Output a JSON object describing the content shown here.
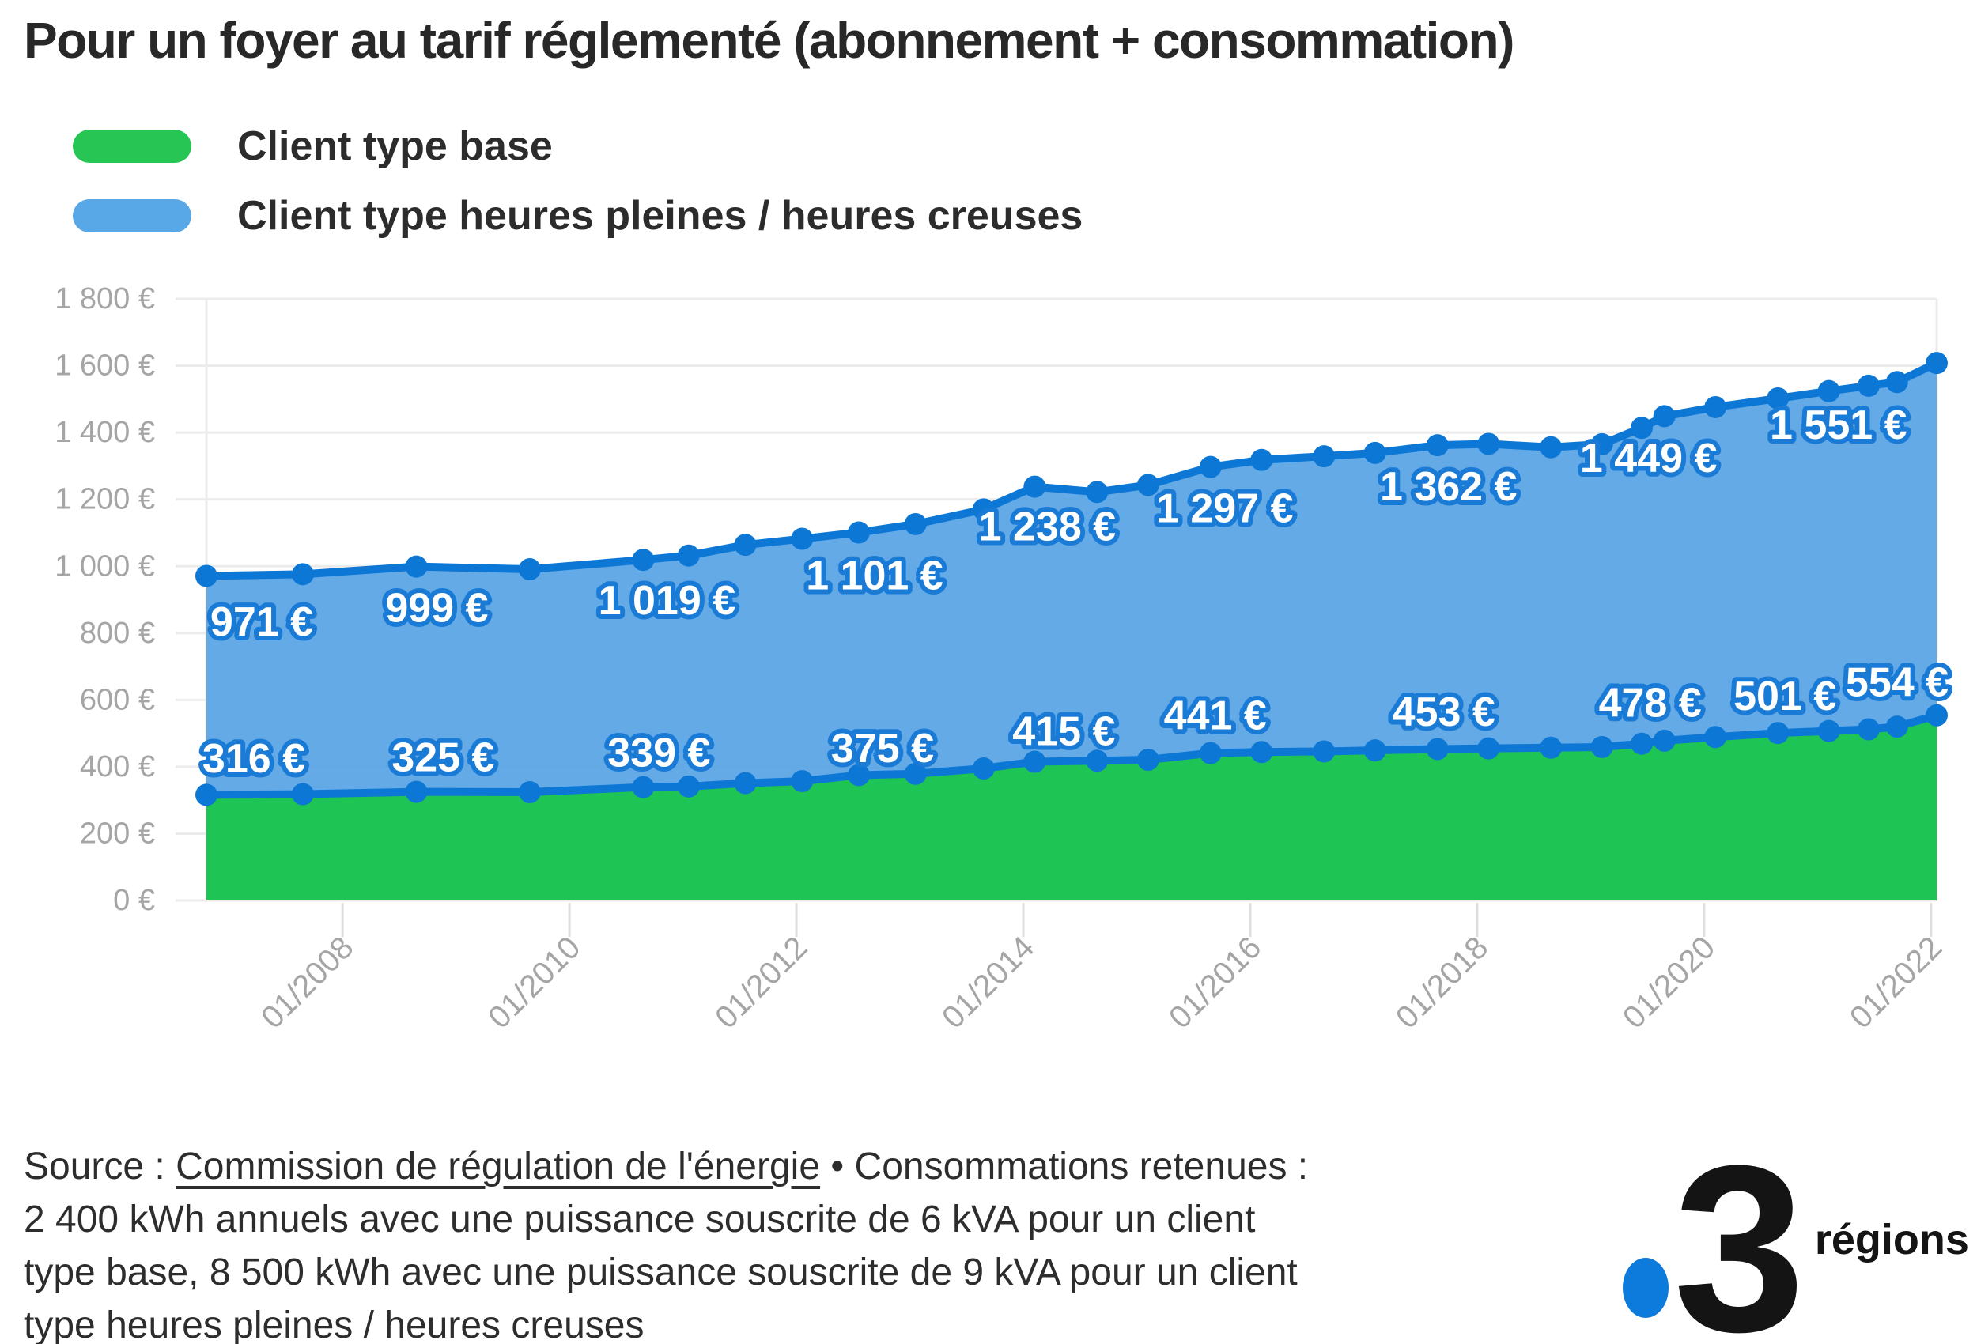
{
  "title": "Pour un foyer au tarif réglementé (abonnement + consommation)",
  "legend": {
    "items": [
      {
        "label": "Client type base",
        "color": "#27c654"
      },
      {
        "label": "Client type heures pleines / heures creuses",
        "color": "#58a8e8"
      }
    ]
  },
  "chart_data": {
    "type": "area",
    "title": "Pour un foyer au tarif réglementé (abonnement + consommation)",
    "xlabel": "",
    "ylabel": "",
    "xlim": [
      2006.8,
      2022.05
    ],
    "ylim": [
      0,
      1800
    ],
    "grid": "horizontal",
    "legend_position": "top-left",
    "x": [
      2006.8,
      2007.65,
      2008.65,
      2009.65,
      2010.65,
      2011.05,
      2011.55,
      2012.05,
      2012.55,
      2013.05,
      2013.65,
      2014.1,
      2014.65,
      2015.1,
      2015.65,
      2016.1,
      2016.65,
      2017.1,
      2017.65,
      2018.1,
      2018.65,
      2019.1,
      2019.45,
      2019.65,
      2020.1,
      2020.65,
      2021.1,
      2021.45,
      2021.7,
      2022.05
    ],
    "series": [
      {
        "name": "Client type heures pleines / heures creuses",
        "line_color": "#0d77d6",
        "fill_color": "#5ba5e5",
        "values": [
          971,
          976,
          999,
          991,
          1019,
          1032,
          1064,
          1082,
          1101,
          1126,
          1170,
          1238,
          1222,
          1243,
          1297,
          1318,
          1329,
          1339,
          1362,
          1366,
          1356,
          1365,
          1414,
          1449,
          1476,
          1502,
          1524,
          1540,
          1551,
          1608
        ],
        "labels": [
          {
            "index": 0,
            "text": "971 €",
            "dx": 70,
            "dy": 62
          },
          {
            "index": 2,
            "text": "999 €",
            "dx": 26,
            "dy": 56
          },
          {
            "index": 4,
            "text": "1 019 €",
            "dx": 30,
            "dy": 55
          },
          {
            "index": 8,
            "text": "1 101 €",
            "dx": 20,
            "dy": 58
          },
          {
            "index": 11,
            "text": "1 238 €",
            "dx": 16,
            "dy": 54
          },
          {
            "index": 14,
            "text": "1 297 €",
            "dx": 18,
            "dy": 56
          },
          {
            "index": 18,
            "text": "1 362 €",
            "dx": 14,
            "dy": 56
          },
          {
            "index": 23,
            "text": "1 449 €",
            "dx": -20,
            "dy": 57
          },
          {
            "index": 28,
            "text": "1 551 €",
            "dx": -74,
            "dy": 58
          }
        ]
      },
      {
        "name": "Client type base",
        "line_color": "#0d77d6",
        "fill_color": "#1ec454",
        "values": [
          316,
          318,
          325,
          324,
          339,
          341,
          351,
          357,
          375,
          379,
          395,
          415,
          418,
          421,
          441,
          444,
          446,
          449,
          453,
          455,
          457,
          459,
          469,
          478,
          489,
          501,
          507,
          512,
          520,
          554
        ],
        "labels": [
          {
            "index": 0,
            "text": "316 €",
            "dx": 60,
            "dy": -42
          },
          {
            "index": 2,
            "text": "325 €",
            "dx": 34,
            "dy": -40
          },
          {
            "index": 4,
            "text": "339 €",
            "dx": 20,
            "dy": -40
          },
          {
            "index": 8,
            "text": "375 €",
            "dx": 30,
            "dy": -30
          },
          {
            "index": 11,
            "text": "415 €",
            "dx": 37,
            "dy": -35
          },
          {
            "index": 14,
            "text": "441 €",
            "dx": 6,
            "dy": -44
          },
          {
            "index": 18,
            "text": "453 €",
            "dx": 8,
            "dy": -43
          },
          {
            "index": 23,
            "text": "478 €",
            "dx": -18,
            "dy": -44
          },
          {
            "index": 25,
            "text": "501 €",
            "dx": 9,
            "dy": -43
          },
          {
            "index": 29,
            "text": "554 €",
            "dx": -50,
            "dy": -38
          }
        ]
      }
    ],
    "yticks": [
      {
        "value": 1800,
        "label": "1 800 €"
      },
      {
        "value": 1600,
        "label": "1 600 €"
      },
      {
        "value": 1400,
        "label": "1 400 €"
      },
      {
        "value": 1200,
        "label": "1 200 €"
      },
      {
        "value": 1000,
        "label": "1 000 €"
      },
      {
        "value": 800,
        "label": "800 €"
      },
      {
        "value": 600,
        "label": "600 €"
      },
      {
        "value": 400,
        "label": "400 €"
      },
      {
        "value": 200,
        "label": "200 €"
      },
      {
        "value": 0,
        "label": "0 €"
      }
    ],
    "xticks": [
      {
        "year": 2008,
        "label": "01/2008"
      },
      {
        "year": 2010,
        "label": "01/2010"
      },
      {
        "year": 2012,
        "label": "01/2012"
      },
      {
        "year": 2014,
        "label": "01/2014"
      },
      {
        "year": 2016,
        "label": "01/2016"
      },
      {
        "year": 2018,
        "label": "01/2018"
      },
      {
        "year": 2020,
        "label": "01/2020"
      },
      {
        "year": 2022,
        "label": "01/2022"
      }
    ]
  },
  "source": {
    "prefix": "Source : ",
    "link_text": "Commission de régulation de l'énergie",
    "line1_rest": " • Consommations retenues :",
    "line2": "2 400 kWh annuels avec une puissance souscrite de 6 kVA pour un client",
    "line3": "type base, 8 500 kWh avec une puissance souscrite de 9 kVA pour un client",
    "line4": "type heures pleines / heures creuses"
  },
  "logo": {
    "channel_number": "3",
    "suffix": "régions",
    "dot_color": "#0d7bdb"
  },
  "colors": {
    "line_blue": "#0d77d6",
    "area_blue": "#5ba5e5",
    "area_green": "#1ec454",
    "legend_green": "#27c654",
    "legend_blue": "#58a8e8",
    "label_halo": "#1a7bd7",
    "axis_text": "#a5a5a5",
    "gridline": "#ececec",
    "title_text": "#282828",
    "background": "#ffffff"
  }
}
